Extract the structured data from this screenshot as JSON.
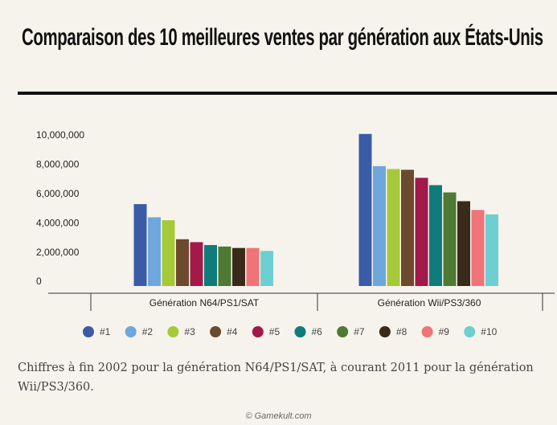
{
  "chart_data": {
    "type": "bar",
    "title": "Comparaison des 10 meilleures ventes par génération aux États-Unis",
    "caption": "Chiffres à fin 2002 pour la génération N64/PS1/SAT, à courant 2011 pour la génération Wii/PS3/360.",
    "credit": "© Gamekult.com",
    "categories": [
      "Génération N64/PS1/SAT",
      "Génération Wii/PS3/360"
    ],
    "series": [
      {
        "name": "#1",
        "color": "#3a5ba8",
        "values": [
          5600000,
          10400000
        ]
      },
      {
        "name": "#2",
        "color": "#6ea7dc",
        "values": [
          4700000,
          8200000
        ]
      },
      {
        "name": "#3",
        "color": "#a6c93a",
        "values": [
          4500000,
          8000000
        ]
      },
      {
        "name": "#4",
        "color": "#6b4a2e",
        "values": [
          3200000,
          7950000
        ]
      },
      {
        "name": "#5",
        "color": "#a3194a",
        "values": [
          3000000,
          7400000
        ]
      },
      {
        "name": "#6",
        "color": "#0f7b7b",
        "values": [
          2800000,
          6900000
        ]
      },
      {
        "name": "#7",
        "color": "#4e7a34",
        "values": [
          2700000,
          6400000
        ]
      },
      {
        "name": "#8",
        "color": "#3a2a1a",
        "values": [
          2600000,
          5800000
        ]
      },
      {
        "name": "#9",
        "color": "#f07377",
        "values": [
          2600000,
          5200000
        ]
      },
      {
        "name": "#10",
        "color": "#6dcfd2",
        "values": [
          2400000,
          4900000
        ]
      }
    ],
    "ylim": [
      0,
      11000000
    ],
    "yticks": [
      0,
      {
        "value": 2000000,
        "label": "2,000,000"
      },
      {
        "value": 4000000,
        "label": "4,000,000"
      },
      {
        "value": 6000000,
        "label": "6,000,000"
      },
      {
        "value": 8000000,
        "label": "8,000,000"
      },
      {
        "value": 10000000,
        "label": "10,000,000"
      }
    ],
    "grid": false,
    "legend": "bottom"
  }
}
